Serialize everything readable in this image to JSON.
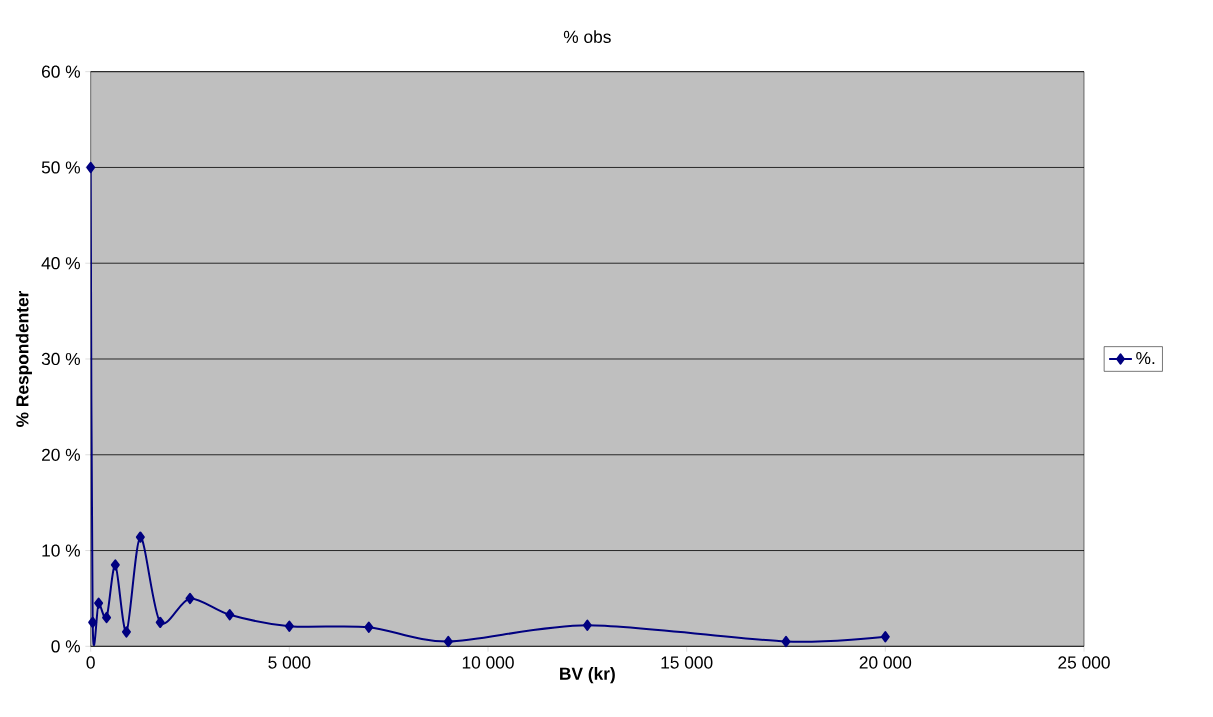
{
  "chart_data": {
    "type": "line",
    "title": "% obs",
    "xlabel": "BV (kr)",
    "ylabel": "% Respondenter",
    "x": [
      0,
      50,
      200,
      400,
      620,
      900,
      1250,
      1750,
      2500,
      3500,
      5000,
      7000,
      9000,
      12500,
      17500,
      20000
    ],
    "series": [
      {
        "name": "%.",
        "color": "#000080",
        "values": [
          50,
          2.5,
          4.5,
          3.0,
          8.5,
          1.5,
          11.4,
          2.5,
          5.0,
          3.3,
          2.1,
          2.0,
          0.5,
          2.2,
          0.5,
          1.0
        ]
      }
    ],
    "xlim": [
      0,
      25000
    ],
    "xticks": [
      0,
      {
        "value": 5000,
        "label": "5 000"
      },
      {
        "value": 10000,
        "label": "10 000"
      },
      {
        "value": 15000,
        "label": "15 000"
      },
      {
        "value": 20000,
        "label": "20 000"
      },
      {
        "value": 25000,
        "label": "25 000"
      }
    ],
    "ylim": [
      0,
      60
    ],
    "yticks": [
      {
        "value": 0,
        "label": "0 %"
      },
      {
        "value": 10,
        "label": "10 %"
      },
      {
        "value": 20,
        "label": "20 %"
      },
      {
        "value": 30,
        "label": "30 %"
      },
      {
        "value": 40,
        "label": "40 %"
      },
      {
        "value": 50,
        "label": "50 %"
      },
      {
        "value": 60,
        "label": "60 %"
      }
    ],
    "grid": "y",
    "legend": "right",
    "marker": "diamond",
    "line_style": "solid"
  }
}
